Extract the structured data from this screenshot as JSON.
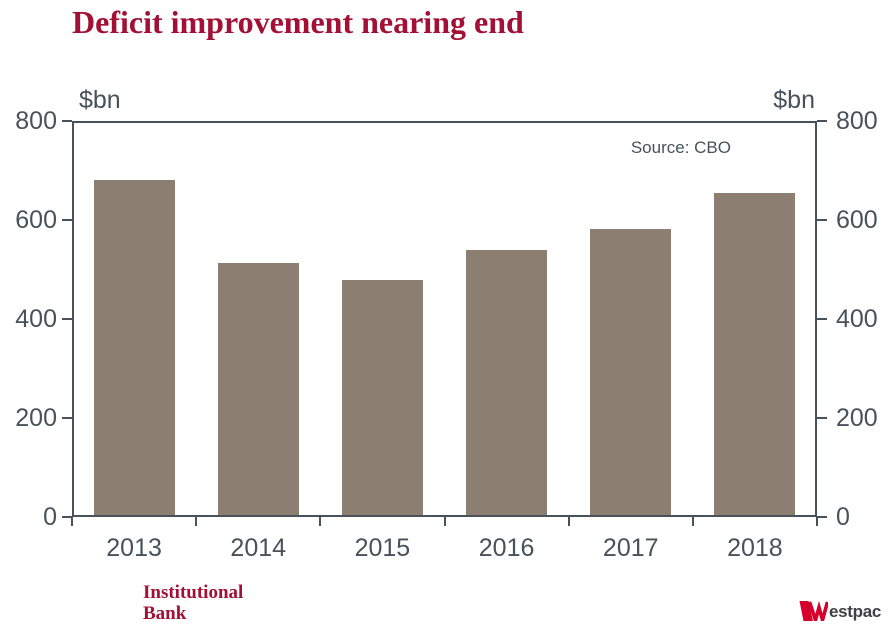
{
  "title": "Deficit improvement nearing end",
  "chart_data": {
    "type": "bar",
    "categories": [
      "2013",
      "2014",
      "2015",
      "2016",
      "2017",
      "2018"
    ],
    "values": [
      680,
      514,
      478,
      539,
      581,
      655
    ],
    "title": "Deficit improvement nearing end",
    "xlabel": "",
    "ylabel_left": "$bn",
    "ylabel_right": "$bn",
    "ylim": [
      0,
      800
    ],
    "yticks": [
      0,
      200,
      400,
      600,
      800
    ],
    "grid": false,
    "legend": "none",
    "source": "Source: CBO",
    "bar_color": "#8C7E71"
  },
  "footer": {
    "brand_line1": "Institutional",
    "brand_line2": "Bank",
    "westpac_brand": "Westpac",
    "westpac_logo_text": "estpac"
  },
  "colors": {
    "title_red": "#A21035",
    "axis_gray": "#47525A",
    "bar_taupe": "#8C7E71",
    "westpac_red": "#D5002B",
    "logo_gray": "#414042"
  }
}
